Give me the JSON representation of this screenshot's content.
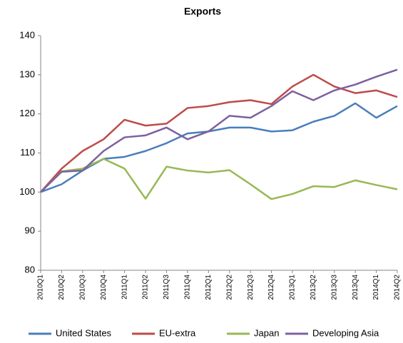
{
  "chart_data": {
    "type": "line",
    "title": "Exports",
    "categories": [
      "2010Q1",
      "2010Q2",
      "2010Q3",
      "2010Q4",
      "2011Q1",
      "2011Q2",
      "2011Q3",
      "2011Q4",
      "2012Q1",
      "2012Q2",
      "2012Q3",
      "2012Q4",
      "2013Q1",
      "2013Q2",
      "2013Q3",
      "2013Q4",
      "2014Q1",
      "2014Q2"
    ],
    "series": [
      {
        "name": "United States",
        "color": "#4a7ebb",
        "values": [
          100,
          102,
          105.5,
          108.5,
          109,
          110.5,
          112.5,
          115,
          115.5,
          116.5,
          116.5,
          115.5,
          115.8,
          118,
          119.5,
          122.7,
          119,
          122
        ]
      },
      {
        "name": "EU-extra",
        "color": "#be4b48",
        "values": [
          100,
          106,
          110.5,
          113.5,
          118.5,
          117,
          117.5,
          121.5,
          122,
          123,
          123.5,
          122.5,
          127,
          130,
          127,
          125.3,
          126,
          124.3
        ]
      },
      {
        "name": "Japan",
        "color": "#98b954",
        "values": [
          100,
          105.3,
          106,
          108.5,
          106,
          98.3,
          106.5,
          105.5,
          105,
          105.6,
          102,
          98.2,
          99.5,
          101.5,
          101.3,
          103,
          101.8,
          100.7
        ]
      },
      {
        "name": "Developing Asia",
        "color": "#7d60a0",
        "values": [
          100,
          105.2,
          105.5,
          110.5,
          114,
          114.5,
          116.5,
          113.5,
          115.5,
          119.5,
          119,
          122,
          125.8,
          123.5,
          126,
          127.5,
          129.5,
          131.3
        ]
      }
    ],
    "ylim": [
      80,
      140
    ],
    "yticks": [
      80,
      90,
      100,
      110,
      120,
      130,
      140
    ],
    "grid": false,
    "legend": "bottom"
  }
}
